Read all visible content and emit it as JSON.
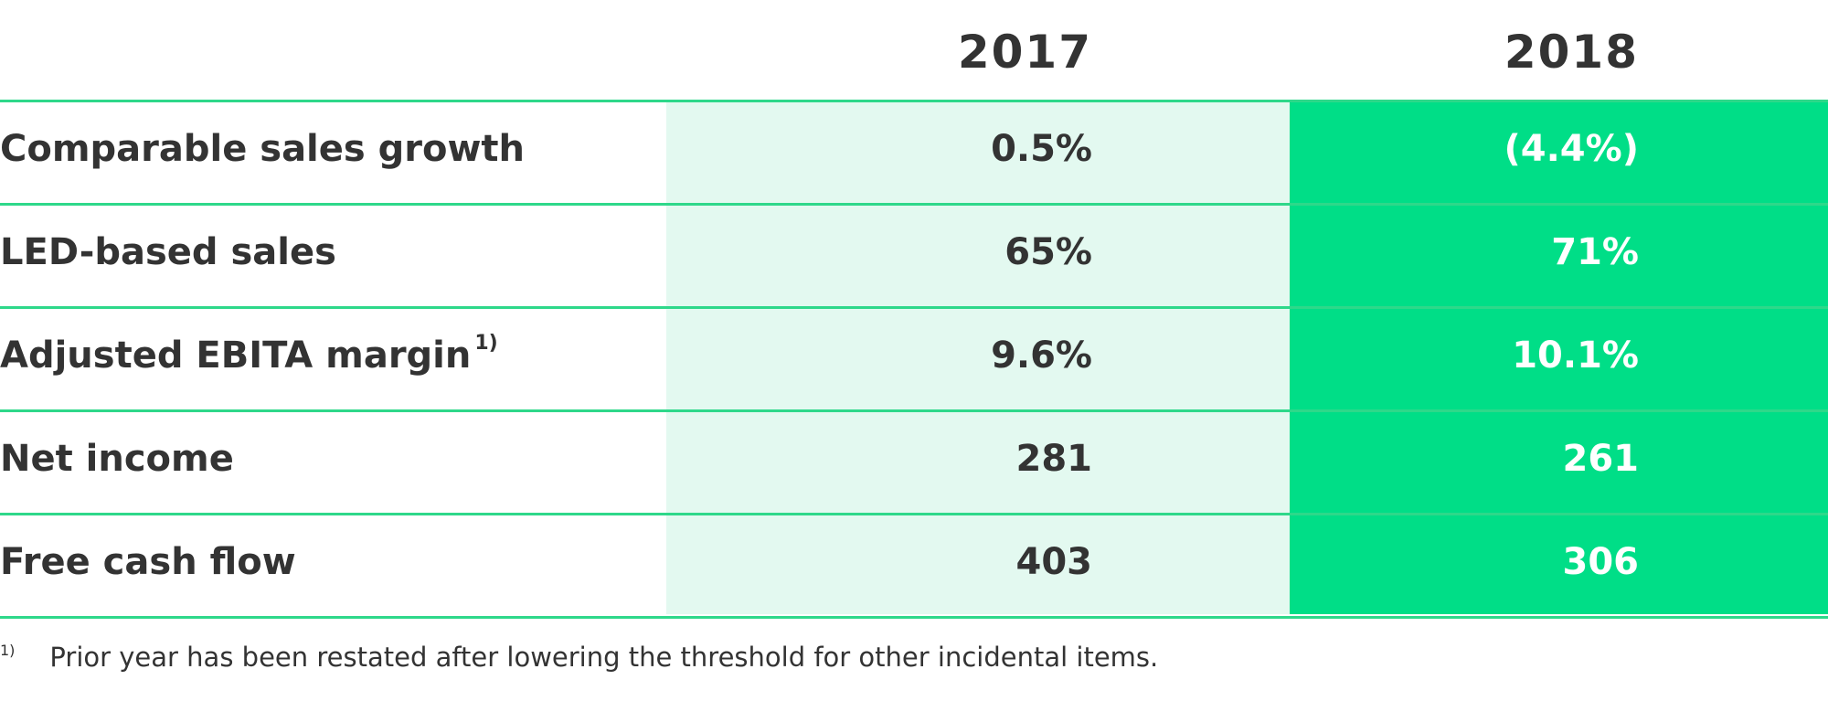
{
  "columns": {
    "year_2017": "2017",
    "year_2018": "2018"
  },
  "rows": [
    {
      "label": "Comparable sales growth",
      "footnote_marker": "",
      "v2017": "0.5%",
      "v2018": "(4.4%)"
    },
    {
      "label": "LED-based sales",
      "footnote_marker": "",
      "v2017": "65%",
      "v2018": "71%"
    },
    {
      "label": "Adjusted EBITA margin",
      "footnote_marker": "1)",
      "v2017": "9.6%",
      "v2018": "10.1%"
    },
    {
      "label": "Net income",
      "footnote_marker": "",
      "v2017": "281",
      "v2018": "261"
    },
    {
      "label": "Free cash flow",
      "footnote_marker": "",
      "v2017": "403",
      "v2018": "306"
    }
  ],
  "footnote": {
    "marker": "1)",
    "text": "Prior year has been restated after lowering the threshold for other incidental items."
  },
  "colors": {
    "accent_green": "#00de87",
    "light_green": "#e3f9f0",
    "rule_green": "#2ed88a",
    "text_dark": "#333333"
  }
}
